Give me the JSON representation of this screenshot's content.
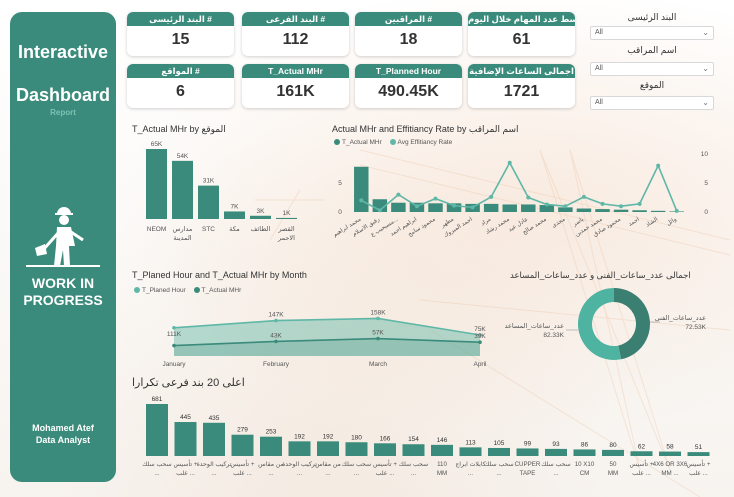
{
  "sidebar": {
    "title_line1": "Interactive",
    "title_line2": "Dashboard",
    "subtitle": "Report",
    "logo_line1": "WORK IN",
    "logo_line2": "PROGRESS",
    "author_name": "Mohamed Atef",
    "author_role": "Data Analyst"
  },
  "kpis": [
    {
      "label": "البند الرئيسى #",
      "value": "15"
    },
    {
      "label": "البند الفرعى #",
      "value": "112"
    },
    {
      "label": "المراقبين #",
      "value": "18"
    },
    {
      "label": "متوسط عدد المهام خلال اليوم",
      "value": "61"
    },
    {
      "label": "المواقع #",
      "value": "6"
    },
    {
      "label": "T_Actual MHr",
      "value": "161K"
    },
    {
      "label": "T_Planned Hour",
      "value": "490.45K"
    },
    {
      "label": "اجمالى الساعات الإضافية",
      "value": "1721"
    }
  ],
  "slicers": [
    {
      "label": "البند الرئيسى",
      "value": "All"
    },
    {
      "label": "اسم المراقب",
      "value": "All"
    },
    {
      "label": "الموقع",
      "value": "All"
    }
  ],
  "colors": {
    "teal": "#3a8b7b",
    "light_teal": "#5fb7a7",
    "panel": "#3a8b7b"
  },
  "chart_data": [
    {
      "id": "site_chart",
      "type": "bar",
      "title": "T_Actual MHr by الموقع",
      "categories": [
        "NEOM",
        "مدارس المدينة",
        "STC",
        "مكة",
        "الطائف",
        "القصر الاحمر"
      ],
      "values": [
        65000,
        54000,
        31000,
        7000,
        3000,
        1000
      ],
      "data_labels": [
        "65K",
        "54K",
        "31K",
        "7K",
        "3K",
        "1K"
      ]
    },
    {
      "id": "supervisor_chart",
      "type": "bar",
      "title": "Actual MHr and Effitiancy Rate by اسم المراقب",
      "legend": [
        "T_Actual MHr",
        "Avg Effitiancy Rate"
      ],
      "categories": [
        "محمد ابراهيم",
        "رفيق الاسلام",
        "مسيحيب ع...",
        "ابراهيم احمد",
        "محمود سامح",
        "مطهر",
        "احمد المبروك",
        "مراد",
        "محمد رشاد",
        "عادل عيد",
        "محمد صالح",
        "مجدى",
        "ياسر",
        "محمد حمدين",
        "محمود صادق",
        "احمد",
        "الشاذ",
        "وائل"
      ],
      "series": [
        {
          "name": "T_Actual MHr",
          "values": [
            7.8,
            2.2,
            1.6,
            1.6,
            1.5,
            1.5,
            1.4,
            1.4,
            1.3,
            1.3,
            1.2,
            0.8,
            0.6,
            0.5,
            0.4,
            0.3,
            0.2,
            0.1
          ]
        },
        {
          "name": "Avg Effitiancy Rate",
          "values": [
            2.0,
            0.3,
            3.0,
            1.0,
            2.3,
            1.1,
            0.8,
            2.6,
            8.5,
            2.5,
            1.3,
            1.0,
            2.6,
            1.4,
            1.0,
            1.4,
            8.0,
            0.2
          ]
        }
      ],
      "y_right_ticks": [
        "0",
        "5",
        "10"
      ],
      "y_left_ticks": [
        "0",
        "5"
      ]
    },
    {
      "id": "month_chart",
      "type": "area",
      "title": "T_Planed Hour and T_Actual MHr by Month",
      "legend": [
        "T_Planed Hour",
        "T_Actual MHr"
      ],
      "categories": [
        "January",
        "February",
        "March",
        "April"
      ],
      "series": [
        {
          "name": "T_Planed Hour",
          "values": [
            111000,
            147000,
            158000,
            75000
          ],
          "labels": [
            "111K",
            "147K",
            "158K",
            "75K"
          ]
        },
        {
          "name": "T_Actual MHr",
          "values": [
            22000,
            43000,
            57000,
            39000
          ],
          "labels": [
            "",
            "43K",
            "57K",
            "39K"
          ]
        }
      ]
    },
    {
      "id": "donut_chart",
      "type": "pie",
      "title": "اجمالى عدد_ساعات_الفنى و عدد_ساعات_المساعد",
      "categories": [
        "عدد_ساعات_الفنى",
        "عدد_ساعات_المساعد"
      ],
      "values": [
        72530,
        82330
      ],
      "data_labels": [
        "72.53K",
        "82.33K"
      ]
    },
    {
      "id": "top20_chart",
      "type": "bar",
      "title": "اعلى 20 بند فرعى تكرارا",
      "categories": [
        "سحب سلك ...",
        "تأسيس + علب ...",
        "تركيب الوحدة ...",
        "تأسيس + علب ...",
        "من مقاس ...",
        "تركيب الوحدة ...",
        "من مقاس ...",
        "سحب سلك ...",
        "تأسيس + علب ...",
        "سحب سلك ...",
        "110 MM",
        "كابلات ابراج ...",
        "سحب سلك ...",
        "CUPPER TAPE",
        "سحب سلك ...",
        "10 X10 CM",
        "50 MM",
        "تأسيس + علب ...",
        "4X6 OR 3X6 MM ...",
        "تأسيس + علب ..."
      ],
      "values": [
        681,
        445,
        435,
        279,
        253,
        192,
        192,
        180,
        166,
        154,
        146,
        113,
        105,
        99,
        93,
        86,
        80,
        62,
        58,
        51
      ]
    }
  ]
}
